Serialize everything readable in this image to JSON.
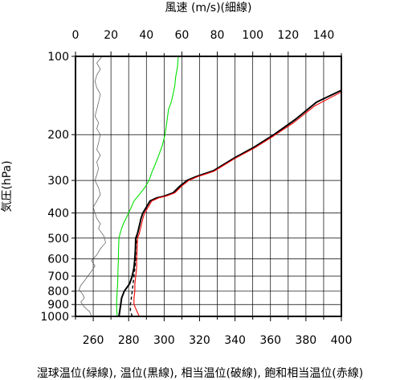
{
  "chart_data": {
    "type": "line",
    "top_axis_label": "風速 (m/s)(細線)",
    "ylabel": "気圧(hPa)",
    "xlabel": "湿球温位(緑線), 温位(黒線), 相当温位(破線), 飽和相当温位(赤線)",
    "y_scale": "log",
    "y_reversed": true,
    "ylim": [
      1000,
      100
    ],
    "y_ticks": [
      100,
      200,
      300,
      400,
      500,
      600,
      700,
      800,
      900,
      1000
    ],
    "bottom_xlim": [
      250,
      400
    ],
    "bottom_ticks": [
      260,
      280,
      300,
      320,
      340,
      360,
      380,
      400
    ],
    "top_xlim": [
      0,
      150
    ],
    "top_ticks": [
      0,
      20,
      40,
      60,
      80,
      100,
      120,
      140
    ],
    "grid": true,
    "series": [
      {
        "name": "湿球温位",
        "axis": "bottom",
        "color": "#00e000",
        "style": "solid",
        "points": [
          [
            273.5,
            1000
          ],
          [
            273.3,
            950
          ],
          [
            273.2,
            900
          ],
          [
            273.3,
            850
          ],
          [
            273.5,
            800
          ],
          [
            273.8,
            750
          ],
          [
            273.9,
            700
          ],
          [
            274.0,
            650
          ],
          [
            274.2,
            600
          ],
          [
            274.3,
            550
          ],
          [
            274.5,
            500
          ],
          [
            275.5,
            470
          ],
          [
            277.0,
            440
          ],
          [
            278.5,
            420
          ],
          [
            280.0,
            400
          ],
          [
            281.5,
            380
          ],
          [
            283.0,
            360
          ],
          [
            286.0,
            340
          ],
          [
            289.0,
            320
          ],
          [
            291.5,
            300
          ],
          [
            293.0,
            280
          ],
          [
            295.0,
            260
          ],
          [
            297.0,
            240
          ],
          [
            299.0,
            220
          ],
          [
            300.5,
            200
          ],
          [
            301.5,
            180
          ],
          [
            302.5,
            160
          ],
          [
            304.0,
            150
          ],
          [
            305.0,
            140
          ],
          [
            306.0,
            130
          ],
          [
            306.5,
            120
          ],
          [
            307.5,
            110
          ],
          [
            308.0,
            100
          ]
        ]
      },
      {
        "name": "温位",
        "axis": "bottom",
        "color": "#000000",
        "style": "solid",
        "points": [
          [
            274.5,
            1000
          ],
          [
            275.5,
            900
          ],
          [
            276.0,
            850
          ],
          [
            277.5,
            800
          ],
          [
            280.5,
            750
          ],
          [
            282.0,
            700
          ],
          [
            283.0,
            650
          ],
          [
            283.5,
            600
          ],
          [
            283.8,
            550
          ],
          [
            284.0,
            500
          ],
          [
            285.0,
            480
          ],
          [
            286.0,
            450
          ],
          [
            287.0,
            420
          ],
          [
            288.0,
            400
          ],
          [
            290.0,
            380
          ],
          [
            292.0,
            360
          ],
          [
            296.0,
            350
          ],
          [
            300.0,
            345
          ],
          [
            305.0,
            335
          ],
          [
            309.0,
            315
          ],
          [
            313.0,
            300
          ],
          [
            318.0,
            290
          ],
          [
            328.0,
            275
          ],
          [
            340.0,
            245
          ],
          [
            350.0,
            225
          ],
          [
            362.0,
            200
          ],
          [
            374.0,
            175
          ],
          [
            386.0,
            150
          ],
          [
            400.0,
            135
          ]
        ]
      },
      {
        "name": "相当温位",
        "axis": "bottom",
        "color": "#000000",
        "style": "dashed",
        "points": [
          [
            282.0,
            1000
          ],
          [
            281.0,
            950
          ],
          [
            281.0,
            900
          ],
          [
            281.5,
            850
          ],
          [
            282.0,
            800
          ],
          [
            282.5,
            750
          ],
          [
            283.0,
            700
          ],
          [
            283.5,
            650
          ],
          [
            284.0,
            600
          ],
          [
            284.0,
            550
          ],
          [
            284.5,
            500
          ],
          [
            285.0,
            480
          ],
          [
            286.0,
            450
          ],
          [
            287.0,
            420
          ],
          [
            288.0,
            400
          ]
        ]
      },
      {
        "name": "飽和相当温位",
        "axis": "bottom",
        "color": "#ff0000",
        "style": "solid",
        "points": [
          [
            286.0,
            1000
          ],
          [
            284.5,
            950
          ],
          [
            283.0,
            900
          ],
          [
            283.0,
            850
          ],
          [
            283.5,
            800
          ],
          [
            283.5,
            750
          ],
          [
            284.0,
            700
          ],
          [
            284.5,
            650
          ],
          [
            284.5,
            600
          ],
          [
            284.8,
            550
          ],
          [
            285.0,
            500
          ],
          [
            286.0,
            480
          ],
          [
            287.0,
            450
          ],
          [
            288.0,
            420
          ],
          [
            289.0,
            400
          ],
          [
            291.0,
            380
          ],
          [
            293.0,
            360
          ],
          [
            297.0,
            350
          ],
          [
            301.0,
            345
          ],
          [
            306.0,
            335
          ],
          [
            310.0,
            315
          ],
          [
            314.0,
            300
          ],
          [
            319.0,
            290
          ],
          [
            328.0,
            277
          ],
          [
            340.0,
            247
          ],
          [
            351.0,
            225
          ],
          [
            362.0,
            202
          ],
          [
            373.0,
            180
          ],
          [
            385.0,
            155
          ],
          [
            400.0,
            137
          ]
        ]
      },
      {
        "name": "風速",
        "axis": "top",
        "color": "#555555",
        "style": "thin",
        "points": [
          [
            9,
            1000
          ],
          [
            8,
            960
          ],
          [
            5,
            920
          ],
          [
            3,
            880
          ],
          [
            5,
            850
          ],
          [
            4,
            820
          ],
          [
            2,
            790
          ],
          [
            3,
            760
          ],
          [
            5,
            730
          ],
          [
            7,
            700
          ],
          [
            9,
            670
          ],
          [
            11,
            640
          ],
          [
            9,
            610
          ],
          [
            12,
            580
          ],
          [
            14,
            550
          ],
          [
            17,
            520
          ],
          [
            16,
            490
          ],
          [
            13,
            460
          ],
          [
            14,
            440
          ],
          [
            12,
            420
          ],
          [
            11,
            400
          ],
          [
            10,
            380
          ],
          [
            12,
            360
          ],
          [
            14,
            340
          ],
          [
            13,
            320
          ],
          [
            11,
            300
          ],
          [
            12,
            285
          ],
          [
            13,
            270
          ],
          [
            12,
            255
          ],
          [
            14,
            240
          ],
          [
            12,
            228
          ],
          [
            13,
            215
          ],
          [
            14,
            200
          ],
          [
            12,
            190
          ],
          [
            13,
            180
          ],
          [
            11,
            170
          ],
          [
            12,
            160
          ],
          [
            13,
            150
          ],
          [
            14,
            140
          ],
          [
            12,
            132
          ],
          [
            11,
            125
          ],
          [
            12,
            118
          ],
          [
            14,
            112
          ],
          [
            12,
            106
          ],
          [
            15,
            100
          ]
        ]
      }
    ]
  }
}
